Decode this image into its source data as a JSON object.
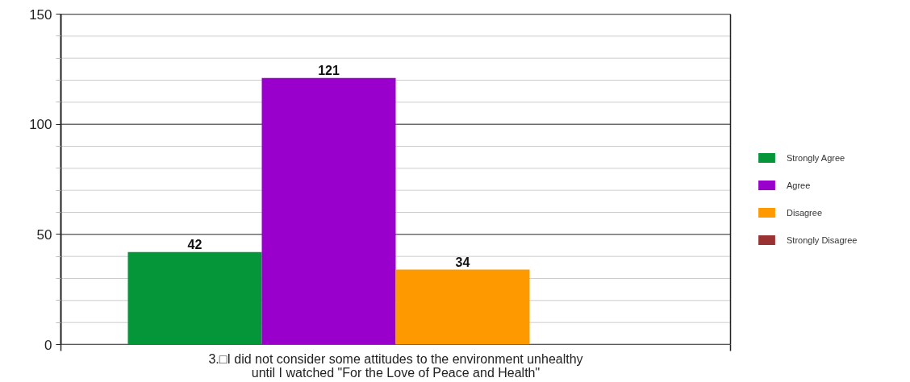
{
  "chart_data": {
    "type": "bar",
    "categories": [
      "3.□I did not consider some attitudes to the environment unhealthy until I watched \"For the Love of Peace and Health\""
    ],
    "series": [
      {
        "name": "Strongly Agree",
        "color": "#05963a",
        "values": [
          42
        ],
        "value_labels": [
          "42"
        ]
      },
      {
        "name": "Agree",
        "color": "#9900cc",
        "values": [
          121
        ],
        "value_labels": [
          "121"
        ]
      },
      {
        "name": "Disagree",
        "color": "#ff9900",
        "values": [
          34
        ],
        "value_labels": [
          "34"
        ]
      },
      {
        "name": "Strongly Disagree",
        "color": "#993333",
        "values": [
          0
        ],
        "value_labels": [
          null
        ]
      }
    ],
    "ylim": [
      0,
      150
    ],
    "yticks": [
      0,
      {
        "value": 10,
        "label": null
      },
      {
        "value": 20,
        "label": null
      },
      {
        "value": 30,
        "label": null
      },
      {
        "value": 40,
        "label": null
      },
      50,
      {
        "value": 60,
        "label": null
      },
      {
        "value": 70,
        "label": null
      },
      {
        "value": 80,
        "label": null
      },
      {
        "value": 90,
        "label": null
      },
      100,
      {
        "value": 110,
        "label": null
      },
      {
        "value": 120,
        "label": null
      },
      {
        "value": 130,
        "label": null
      },
      {
        "value": 140,
        "label": null
      },
      150
    ],
    "grid": "y",
    "legend": "right"
  }
}
